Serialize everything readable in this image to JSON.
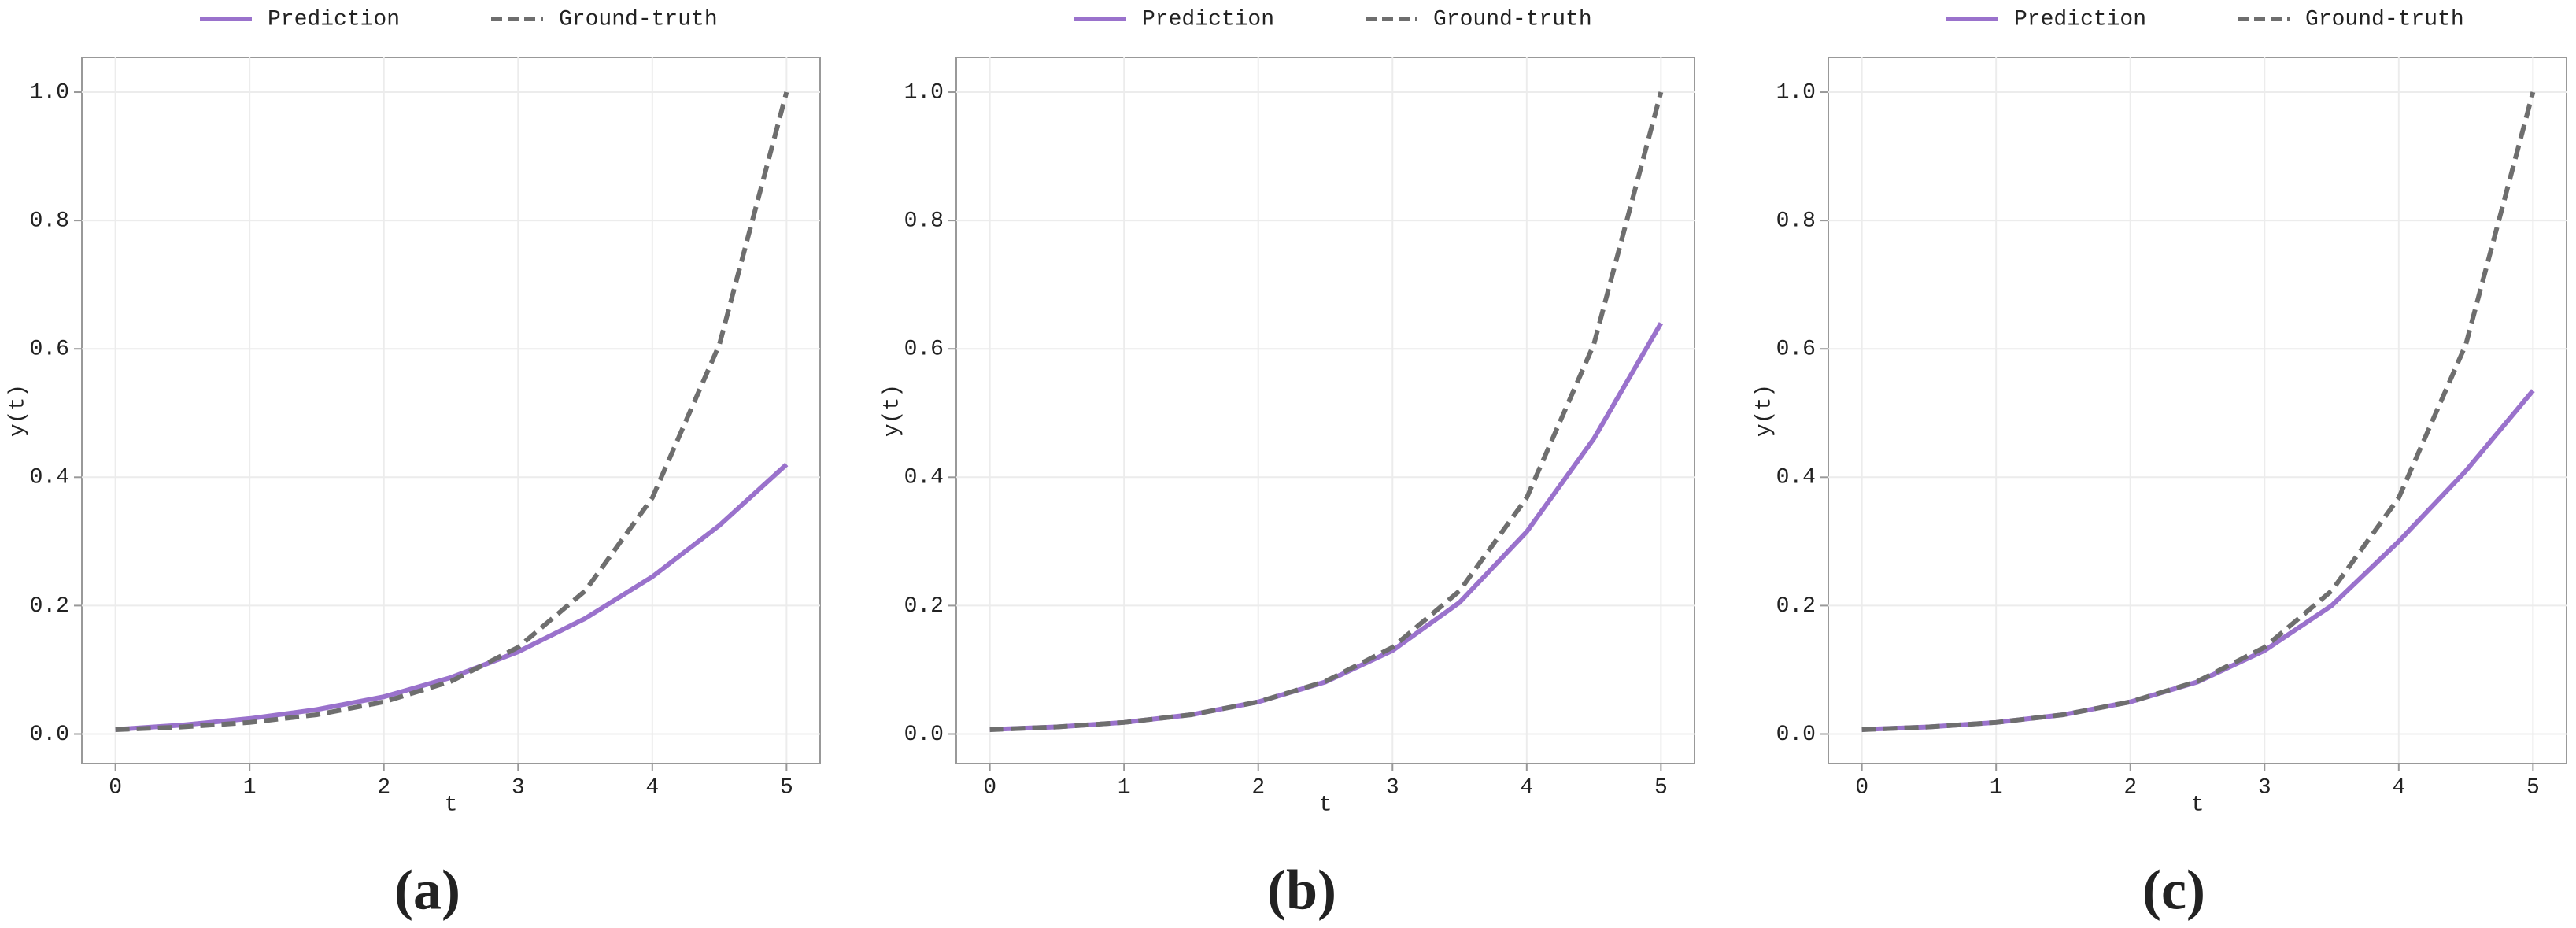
{
  "chart_data": [
    {
      "type": "line",
      "caption": "(a)",
      "xlabel": "t",
      "ylabel": "y(t)",
      "x": [
        0,
        0.5,
        1,
        1.5,
        2,
        2.5,
        3,
        3.5,
        4,
        4.5,
        5
      ],
      "series": [
        {
          "name": "Prediction",
          "color": "#9a72cc",
          "linestyle": "solid",
          "values": [
            0.007,
            0.014,
            0.024,
            0.038,
            0.058,
            0.088,
            0.128,
            0.18,
            0.245,
            0.325,
            0.42
          ]
        },
        {
          "name": "Ground-truth",
          "color": "#6e6e6e",
          "linestyle": "dashed",
          "values": [
            0.0067,
            0.011,
            0.018,
            0.03,
            0.05,
            0.082,
            0.135,
            0.223,
            0.368,
            0.607,
            1.0
          ]
        }
      ],
      "xlim": [
        -0.25,
        5.25
      ],
      "ylim": [
        -0.046,
        1.054
      ],
      "xticks": [
        0,
        1,
        2,
        3,
        4,
        5
      ],
      "yticks": [
        {
          "value": 0,
          "label": "0.0"
        },
        {
          "value": 0.2,
          "label": "0.2"
        },
        {
          "value": 0.4,
          "label": "0.4"
        },
        {
          "value": 0.6,
          "label": "0.6"
        },
        {
          "value": 0.8,
          "label": "0.8"
        },
        {
          "value": 1.0,
          "label": "1.0"
        }
      ],
      "grid": true
    },
    {
      "type": "line",
      "caption": "(b)",
      "xlabel": "t",
      "ylabel": "y(t)",
      "x": [
        0,
        0.5,
        1,
        1.5,
        2,
        2.5,
        3,
        3.5,
        4,
        4.5,
        5
      ],
      "series": [
        {
          "name": "Prediction",
          "color": "#9a72cc",
          "linestyle": "solid",
          "values": [
            0.007,
            0.011,
            0.018,
            0.03,
            0.05,
            0.081,
            0.13,
            0.205,
            0.315,
            0.46,
            0.64
          ]
        },
        {
          "name": "Ground-truth",
          "color": "#6e6e6e",
          "linestyle": "dashed",
          "values": [
            0.0067,
            0.011,
            0.018,
            0.03,
            0.05,
            0.082,
            0.135,
            0.223,
            0.368,
            0.607,
            1.0
          ]
        }
      ],
      "xlim": [
        -0.25,
        5.25
      ],
      "ylim": [
        -0.046,
        1.054
      ],
      "xticks": [
        0,
        1,
        2,
        3,
        4,
        5
      ],
      "yticks": [
        {
          "value": 0,
          "label": "0.0"
        },
        {
          "value": 0.2,
          "label": "0.2"
        },
        {
          "value": 0.4,
          "label": "0.4"
        },
        {
          "value": 0.6,
          "label": "0.6"
        },
        {
          "value": 0.8,
          "label": "0.8"
        },
        {
          "value": 1.0,
          "label": "1.0"
        }
      ],
      "grid": true
    },
    {
      "type": "line",
      "caption": "(c)",
      "xlabel": "t",
      "ylabel": "y(t)",
      "x": [
        0,
        0.5,
        1,
        1.5,
        2,
        2.5,
        3,
        3.5,
        4,
        4.5,
        5
      ],
      "series": [
        {
          "name": "Prediction",
          "color": "#9a72cc",
          "linestyle": "solid",
          "values": [
            0.007,
            0.011,
            0.018,
            0.03,
            0.05,
            0.081,
            0.13,
            0.2,
            0.3,
            0.41,
            0.535
          ]
        },
        {
          "name": "Ground-truth",
          "color": "#6e6e6e",
          "linestyle": "dashed",
          "values": [
            0.0067,
            0.011,
            0.018,
            0.03,
            0.05,
            0.082,
            0.135,
            0.223,
            0.368,
            0.607,
            1.0
          ]
        }
      ],
      "xlim": [
        -0.25,
        5.25
      ],
      "ylim": [
        -0.046,
        1.054
      ],
      "xticks": [
        0,
        1,
        2,
        3,
        4,
        5
      ],
      "yticks": [
        {
          "value": 0,
          "label": "0.0"
        },
        {
          "value": 0.2,
          "label": "0.2"
        },
        {
          "value": 0.4,
          "label": "0.4"
        },
        {
          "value": 0.6,
          "label": "0.6"
        },
        {
          "value": 0.8,
          "label": "0.8"
        },
        {
          "value": 1.0,
          "label": "1.0"
        }
      ],
      "grid": true
    }
  ]
}
